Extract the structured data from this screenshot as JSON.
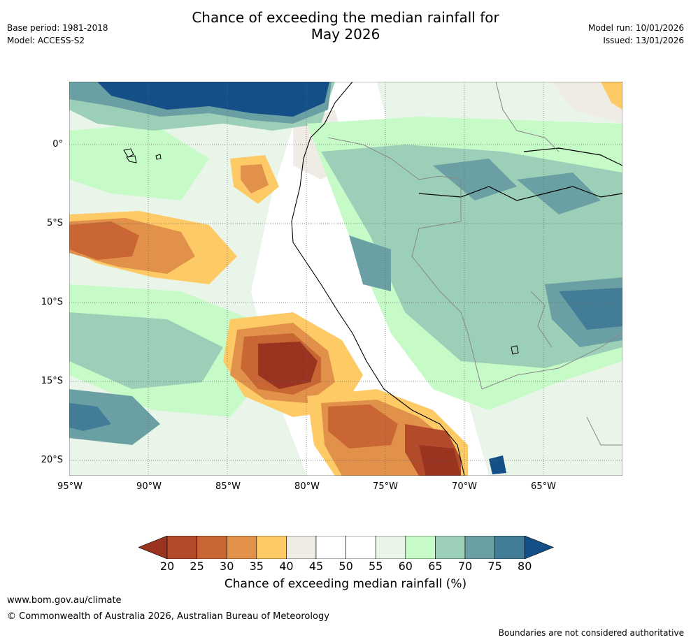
{
  "header": {
    "title_line1": "Chance of exceeding the median rainfall for",
    "title_line2": "May 2026",
    "base_period": "Base period: 1981-2018",
    "model": "Model: ACCESS-S2",
    "model_run": "Model run: 10/01/2026",
    "issued": "Issued: 13/01/2026"
  },
  "axes": {
    "lat_labels": [
      "0°",
      "5°S",
      "10°S",
      "15°S",
      "20°S"
    ],
    "lon_labels": [
      "95°W",
      "90°W",
      "85°W",
      "80°W",
      "75°W",
      "70°W",
      "65°W"
    ]
  },
  "colorbar": {
    "ticks": [
      "20",
      "25",
      "30",
      "35",
      "40",
      "45",
      "50",
      "55",
      "60",
      "65",
      "70",
      "75",
      "80"
    ],
    "colors": [
      "#9a3420",
      "#b34a29",
      "#c96633",
      "#e1914a",
      "#fdca66",
      "#efece6",
      "#ffffff",
      "#ffffff",
      "#eaf5ea",
      "#c6fbc8",
      "#9ccfb8",
      "#6aa0a3",
      "#437c96",
      "#144f87"
    ],
    "title": "Chance of exceeding median rainfall (%)"
  },
  "footer": {
    "url": "www.bom.gov.au/climate",
    "copyright": "© Commonwealth of Australia 2026, Australian Bureau of Meteorology",
    "disclaimer": "Boundaries are not considered authoritative"
  }
}
